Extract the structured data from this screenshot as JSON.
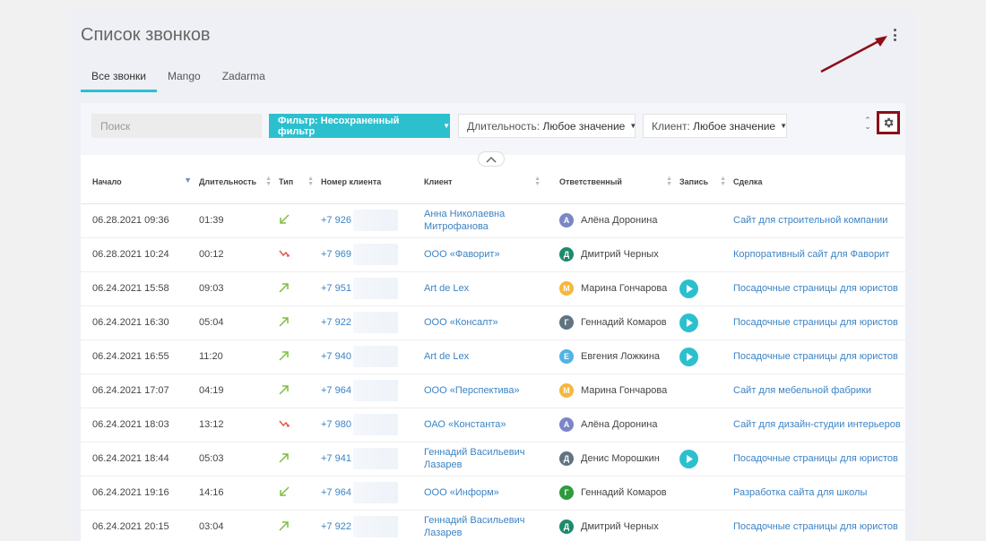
{
  "page": {
    "title": "Список звонков",
    "tabs": [
      {
        "label": "Все звонки",
        "active": true
      },
      {
        "label": "Mango",
        "active": false
      },
      {
        "label": "Zadarma",
        "active": false
      }
    ]
  },
  "toolbar": {
    "search_placeholder": "Поиск",
    "filter_label": "Фильтр: Несохраненный фильтр",
    "duration_label": "Длительность:",
    "duration_value": "Любое значение",
    "client_label": "Клиент:",
    "client_value": "Любое значение"
  },
  "table": {
    "columns": [
      "Начало",
      "Длительность",
      "Тип",
      "Номер клиента",
      "Клиент",
      "Ответственный",
      "Запись",
      "Сделка"
    ],
    "rows": [
      {
        "start": "06.28.2021 09:36",
        "duration": "01:39",
        "type": "incoming",
        "phone": "+7 926",
        "client": "Анна Николаевна Митрофанова",
        "initial": "А",
        "responsible": "Алёна Доронина",
        "avatar_color": "#7b86c6",
        "recording": false,
        "deal": "Сайт для строительной компании"
      },
      {
        "start": "06.28.2021 10:24",
        "duration": "00:12",
        "type": "missed",
        "phone": "+7 969",
        "client": "ООО «Фаворит»",
        "initial": "Д",
        "responsible": "Дмитрий Черных",
        "avatar_color": "#1e8a6b",
        "recording": false,
        "deal": "Корпоративный сайт для Фаворит"
      },
      {
        "start": "06.24.2021 15:58",
        "duration": "09:03",
        "type": "outgoing",
        "phone": "+7 951",
        "client": "Art de Lex",
        "initial": "М",
        "responsible": "Марина Гончарова",
        "avatar_color": "#f6b73c",
        "recording": true,
        "deal": "Посадочные страницы для юристов"
      },
      {
        "start": "06.24.2021 16:30",
        "duration": "05:04",
        "type": "outgoing",
        "phone": "+7 922",
        "client": "ООО «Консалт»",
        "initial": "Г",
        "responsible": "Геннадий Комаров",
        "avatar_color": "#5f7380",
        "recording": true,
        "deal": "Посадочные страницы для юристов"
      },
      {
        "start": "06.24.2021 16:55",
        "duration": "11:20",
        "type": "outgoing",
        "phone": "+7 940",
        "client": "Art de Lex",
        "initial": "Е",
        "responsible": "Евгения Ложкина",
        "avatar_color": "#4fb4e6",
        "recording": true,
        "deal": "Посадочные страницы для юристов"
      },
      {
        "start": "06.24.2021 17:07",
        "duration": "04:19",
        "type": "outgoing",
        "phone": "+7 964",
        "client": "ООО «Перспектива»",
        "initial": "М",
        "responsible": "Марина Гончарова",
        "avatar_color": "#f6b73c",
        "recording": false,
        "deal": "Сайт для мебельной фабрики"
      },
      {
        "start": "06.24.2021 18:03",
        "duration": "13:12",
        "type": "missed",
        "phone": "+7 980",
        "client": "ОАО «Константа»",
        "initial": "А",
        "responsible": "Алёна Доронина",
        "avatar_color": "#7b86c6",
        "recording": false,
        "deal": "Сайт для дизайн-студии интерьеров"
      },
      {
        "start": "06.24.2021 18:44",
        "duration": "05:03",
        "type": "outgoing",
        "phone": "+7 941",
        "client": "Геннадий Васильевич Лазарев",
        "initial": "Д",
        "responsible": "Денис Морошкин",
        "avatar_color": "#5f7380",
        "recording": true,
        "deal": "Посадочные страницы для юристов"
      },
      {
        "start": "06.24.2021 19:16",
        "duration": "14:16",
        "type": "incoming",
        "phone": "+7 964",
        "client": "ООО «Информ»",
        "initial": "Г",
        "responsible": "Геннадий Комаров",
        "avatar_color": "#2e9b3e",
        "recording": false,
        "deal": "Разработка сайта для школы"
      },
      {
        "start": "06.24.2021 20:15",
        "duration": "03:04",
        "type": "outgoing",
        "phone": "+7 922",
        "client": "Геннадий Васильевич Лазарев",
        "initial": "Д",
        "responsible": "Дмитрий Черных",
        "avatar_color": "#1e8a6b",
        "recording": false,
        "deal": "Посадочные страницы для юристов"
      }
    ]
  },
  "colors": {
    "accent": "#2cc0cf",
    "link": "#3c83c4",
    "highlight_border": "#8b0e18",
    "incoming": "#7cbf3d",
    "outgoing": "#7cbf3d",
    "missed": "#e2584a"
  },
  "icons": {
    "menu": "kebab-icon",
    "settings": "gear-icon",
    "collapse": "chevron-up-icon",
    "play": "play-icon",
    "incoming": "arrow-down-left-icon",
    "outgoing": "arrow-up-right-icon",
    "missed": "missed-call-icon"
  }
}
